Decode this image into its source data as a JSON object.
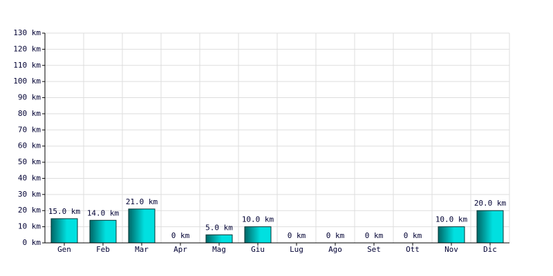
{
  "chart_data": {
    "type": "bar",
    "categories": [
      "Gen",
      "Feb",
      "Mar",
      "Apr",
      "Mag",
      "Giu",
      "Lug",
      "Ago",
      "Set",
      "Ott",
      "Nov",
      "Dic"
    ],
    "values": [
      15,
      14,
      21,
      0,
      5,
      10,
      0,
      0,
      0,
      0,
      10,
      20
    ],
    "value_labels": [
      "15.0 km",
      "14.0 km",
      "21.0 km",
      "0 km",
      "5.0 km",
      "10.0 km",
      "0 km",
      "0 km",
      "0 km",
      "0 km",
      "10.0 km",
      "20.0 km"
    ],
    "color": "#00e0e0",
    "ylim": [
      0,
      130
    ],
    "yticks": [
      {
        "value": 0,
        "label": "0 km"
      },
      {
        "value": 10,
        "label": "10 km"
      },
      {
        "value": 20,
        "label": "20 km"
      },
      {
        "value": 30,
        "label": "30 km"
      },
      {
        "value": 40,
        "label": "40 km"
      },
      {
        "value": 50,
        "label": "50 km"
      },
      {
        "value": 60,
        "label": "60 km"
      },
      {
        "value": 70,
        "label": "70 km"
      },
      {
        "value": 80,
        "label": "80 km"
      },
      {
        "value": 90,
        "label": "90 km"
      },
      {
        "value": 100,
        "label": "100 km"
      },
      {
        "value": 110,
        "label": "110 km"
      },
      {
        "value": 120,
        "label": "120 km"
      },
      {
        "value": 130,
        "label": "130 km"
      }
    ],
    "grid": true
  }
}
